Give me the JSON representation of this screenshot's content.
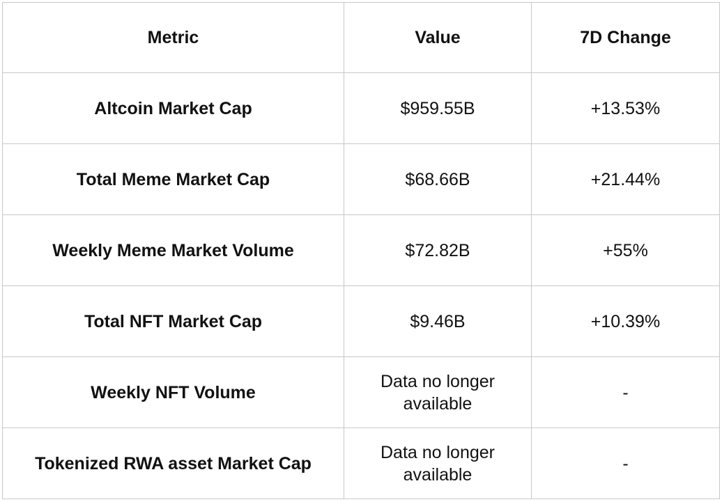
{
  "table": {
    "header": [
      "Metric",
      "Value",
      "7D Change"
    ],
    "rows": [
      [
        "Altcoin Market Cap",
        "$959.55B",
        "+13.53%"
      ],
      [
        "Total Meme Market Cap",
        "$68.66B",
        "+21.44%"
      ],
      [
        "Weekly Meme Market Volume",
        "$72.82B",
        "+55%"
      ],
      [
        "Total NFT Market Cap",
        "$9.46B",
        "+10.39%"
      ],
      [
        "Weekly NFT Volume",
        "Data no longer available",
        "-"
      ],
      [
        "Tokenized RWA asset Market Cap",
        "Data no longer available",
        "-"
      ]
    ]
  }
}
